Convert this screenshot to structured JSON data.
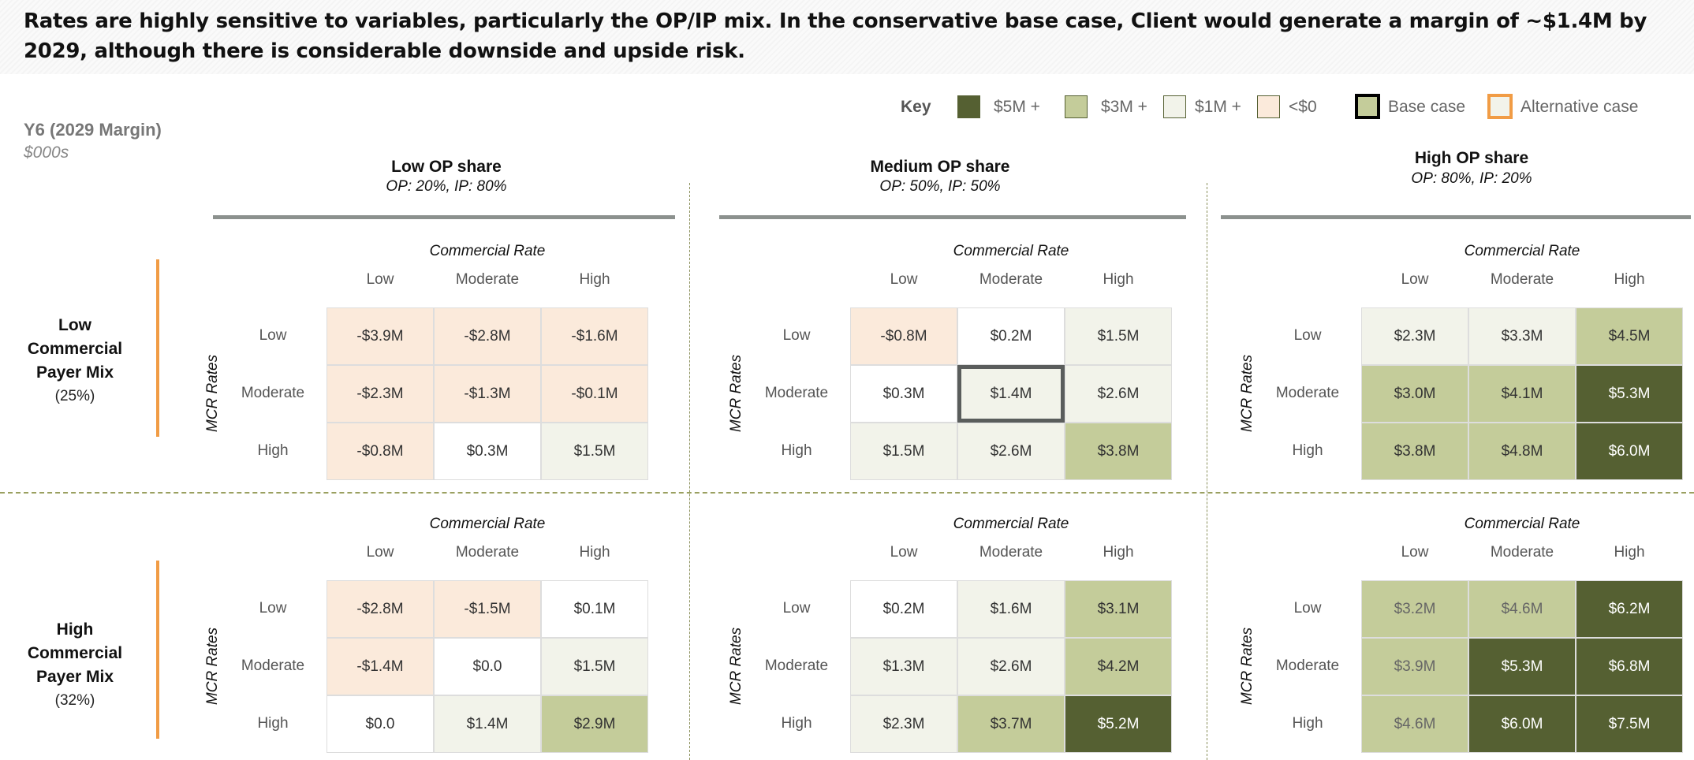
{
  "title": "Rates are highly sensitive to variables, particularly the OP/IP mix. In the conservative base case, Client would generate a margin of ~$1.4M by 2029, although there is considerable downside and upside risk.",
  "metric": {
    "label": "Y6 (2029 Margin)",
    "unit": "$000s"
  },
  "key": {
    "label": "Key",
    "items": [
      {
        "label": "$5M +",
        "color": "#556032"
      },
      {
        "label": "$3M +",
        "color": "#c4cc9a"
      },
      {
        "label": "$1M +",
        "color": "#f2f3ea"
      },
      {
        "label": "<$0",
        "color": "#fbeadb"
      }
    ],
    "base_case": "Base case",
    "alternative_case": "Alternative  case",
    "base_border": "#000000",
    "alt_border": "#f19c45"
  },
  "columns": [
    {
      "title": "Low OP share",
      "sub": "OP: 20%, IP: 80%"
    },
    {
      "title": "Medium OP share",
      "sub": "OP: 50%, IP: 50%"
    },
    {
      "title": "High OP share",
      "sub": "OP: 80%, IP: 20%"
    }
  ],
  "rows": [
    {
      "l1": "Low",
      "l2": "Commercial",
      "l3": "Payer Mix",
      "pct": "(25%)"
    },
    {
      "l1": "High",
      "l2": "Commercial",
      "l3": "Payer Mix",
      "pct": "(32%)"
    }
  ],
  "axis": {
    "commercial": "Commercial Rate",
    "mcr": "MCR Rates",
    "levels": [
      "Low",
      "Moderate",
      "High"
    ]
  },
  "grids": [
    {
      "cells": [
        [
          {
            "v": "-$3.9M",
            "f": "neg"
          },
          {
            "v": "-$2.8M",
            "f": "neg"
          },
          {
            "v": "-$1.6M",
            "f": "neg"
          }
        ],
        [
          {
            "v": "-$2.3M",
            "f": "neg"
          },
          {
            "v": "-$1.3M",
            "f": "neg"
          },
          {
            "v": "-$0.1M",
            "f": "neg"
          }
        ],
        [
          {
            "v": "-$0.8M",
            "f": "neg"
          },
          {
            "v": "$0.3M",
            "f": "white"
          },
          {
            "v": "$1.5M",
            "f": "light"
          }
        ]
      ]
    },
    {
      "cells": [
        [
          {
            "v": "-$0.8M",
            "f": "neg"
          },
          {
            "v": "$0.2M",
            "f": "white"
          },
          {
            "v": "$1.5M",
            "f": "light"
          }
        ],
        [
          {
            "v": "$0.3M",
            "f": "white"
          },
          {
            "v": "$1.4M",
            "f": "light",
            "base": true
          },
          {
            "v": "$2.6M",
            "f": "light"
          }
        ],
        [
          {
            "v": "$1.5M",
            "f": "light"
          },
          {
            "v": "$2.6M",
            "f": "light"
          },
          {
            "v": "$3.8M",
            "f": "mid"
          }
        ]
      ]
    },
    {
      "cells": [
        [
          {
            "v": "$2.3M",
            "f": "light"
          },
          {
            "v": "$3.3M",
            "f": "light"
          },
          {
            "v": "$4.5M",
            "f": "mid"
          }
        ],
        [
          {
            "v": "$3.0M",
            "f": "mid"
          },
          {
            "v": "$4.1M",
            "f": "mid"
          },
          {
            "v": "$5.3M",
            "f": "dark"
          }
        ],
        [
          {
            "v": "$3.8M",
            "f": "mid"
          },
          {
            "v": "$4.8M",
            "f": "mid"
          },
          {
            "v": "$6.0M",
            "f": "dark"
          }
        ]
      ]
    },
    {
      "cells": [
        [
          {
            "v": "-$2.8M",
            "f": "neg"
          },
          {
            "v": "-$1.5M",
            "f": "neg"
          },
          {
            "v": "$0.1M",
            "f": "white"
          }
        ],
        [
          {
            "v": "-$1.4M",
            "f": "neg"
          },
          {
            "v": "$0.0",
            "f": "white"
          },
          {
            "v": "$1.5M",
            "f": "light"
          }
        ],
        [
          {
            "v": "$0.0",
            "f": "white"
          },
          {
            "v": "$1.4M",
            "f": "light"
          },
          {
            "v": "$2.9M",
            "f": "mid"
          }
        ]
      ]
    },
    {
      "cells": [
        [
          {
            "v": "$0.2M",
            "f": "white"
          },
          {
            "v": "$1.6M",
            "f": "light"
          },
          {
            "v": "$3.1M",
            "f": "mid"
          }
        ],
        [
          {
            "v": "$1.3M",
            "f": "light"
          },
          {
            "v": "$2.6M",
            "f": "light"
          },
          {
            "v": "$4.2M",
            "f": "mid"
          }
        ],
        [
          {
            "v": "$2.3M",
            "f": "light"
          },
          {
            "v": "$3.7M",
            "f": "mid"
          },
          {
            "v": "$5.2M",
            "f": "dark"
          }
        ]
      ]
    },
    {
      "cells": [
        [
          {
            "v": "$3.2M",
            "f": "mid",
            "muted": true
          },
          {
            "v": "$4.6M",
            "f": "mid",
            "muted": true
          },
          {
            "v": "$6.2M",
            "f": "dark"
          }
        ],
        [
          {
            "v": "$3.9M",
            "f": "mid",
            "muted": true
          },
          {
            "v": "$5.3M",
            "f": "dark"
          },
          {
            "v": "$6.8M",
            "f": "dark"
          }
        ],
        [
          {
            "v": "$4.6M",
            "f": "mid",
            "muted": true
          },
          {
            "v": "$6.0M",
            "f": "dark"
          },
          {
            "v": "$7.5M",
            "f": "dark"
          }
        ]
      ]
    }
  ]
}
